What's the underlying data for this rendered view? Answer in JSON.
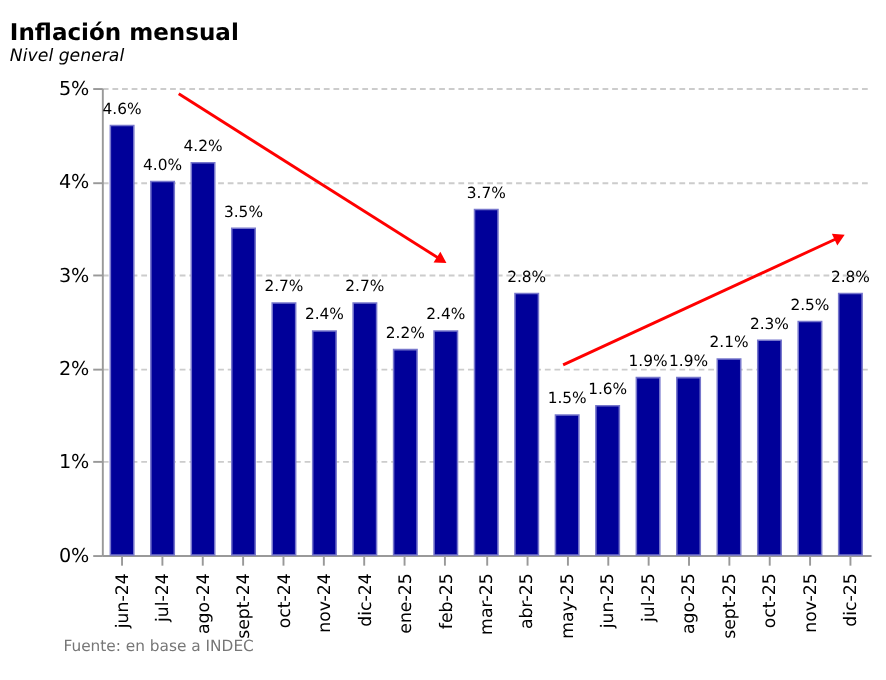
{
  "chart_data": {
    "type": "bar",
    "title": "Inflación mensual",
    "subtitle": "Nivel general",
    "categories": [
      "jun-24",
      "jul-24",
      "ago-24",
      "sept-24",
      "oct-24",
      "nov-24",
      "dic-24",
      "ene-25",
      "feb-25",
      "mar-25",
      "abr-25",
      "may-25",
      "jun-25",
      "jul-25",
      "ago-25",
      "sept-25",
      "oct-25",
      "nov-25",
      "dic-25"
    ],
    "values": [
      4.6,
      4.0,
      4.2,
      3.5,
      2.7,
      2.4,
      2.7,
      2.2,
      2.4,
      3.7,
      2.8,
      1.5,
      1.6,
      1.9,
      1.9,
      2.1,
      2.3,
      2.5,
      2.8
    ],
    "value_labels": [
      "4.6%",
      "4.0%",
      "4.2%",
      "3.5%",
      "2.7%",
      "2.4%",
      "2.7%",
      "2.2%",
      "2.4%",
      "3.7%",
      "2.8%",
      "1.5%",
      "1.6%",
      "1.9%",
      "1.9%",
      "2.1%",
      "2.3%",
      "2.5%",
      "2.8%"
    ],
    "color": "#000099",
    "ylim": [
      0,
      5
    ],
    "yticks": [
      {
        "value": 0,
        "label": "0%"
      },
      {
        "value": 1,
        "label": "1%"
      },
      {
        "value": 2,
        "label": "2%"
      },
      {
        "value": 3,
        "label": "3%"
      },
      {
        "value": 4,
        "label": "4%"
      },
      {
        "value": 5,
        "label": "5%"
      }
    ],
    "grid": "y",
    "annotations": [
      "Fuente: en base a INDEC"
    ]
  }
}
